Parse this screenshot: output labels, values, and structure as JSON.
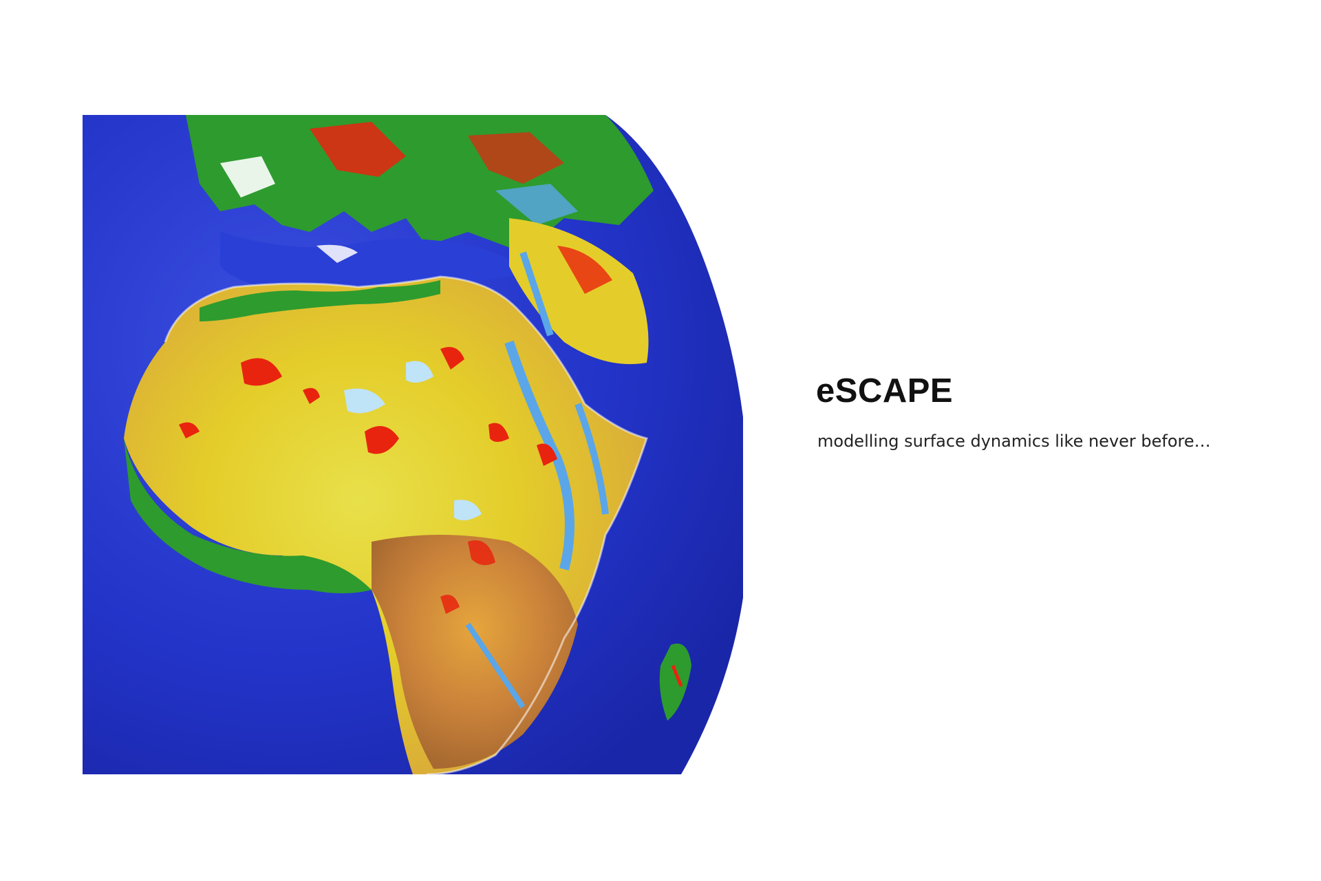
{
  "hero": {
    "title": "eSCAPE",
    "subtitle": "modelling surface dynamics like never before…"
  },
  "globe_image": {
    "subject": "earth-globe-africa-europe",
    "colors": {
      "ocean": "#2334c9",
      "lowland": "#2e9b2e",
      "plateau": "#e4cd2a",
      "highland": "#c9813a",
      "erosion": "#e8240f",
      "channels": "#5aa6e8"
    }
  }
}
